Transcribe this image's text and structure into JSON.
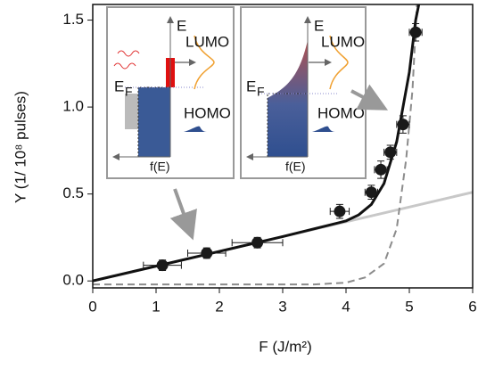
{
  "chart_data": {
    "type": "scatter",
    "x_label": "F (J/m²)",
    "y_label": "Y (1/ 10⁸ pulses)",
    "xlim": [
      0,
      6
    ],
    "xticks": [
      0,
      1,
      2,
      3,
      4,
      5,
      6
    ],
    "ylim": [
      -0.04,
      1.59
    ],
    "yticks": [
      {
        "value": 0,
        "label": "0.0"
      },
      0.5,
      {
        "value": 1,
        "label": "1.0"
      },
      1.5
    ],
    "points": {
      "color": "#1a1a1a",
      "x": [
        1.1,
        1.8,
        2.6,
        3.9,
        4.4,
        4.55,
        4.7,
        4.9,
        5.1
      ],
      "y": [
        0.09,
        0.16,
        0.22,
        0.4,
        0.51,
        0.64,
        0.74,
        0.9,
        1.43
      ],
      "x_err": [
        0.3,
        0.3,
        0.4,
        0.15,
        0.1,
        0.1,
        0.1,
        0.1,
        0.1
      ],
      "y_err": [
        0.03,
        0.03,
        0.03,
        0.04,
        0.04,
        0.05,
        0.04,
        0.05,
        0.05
      ]
    },
    "lines": [
      {
        "style": "solid",
        "color": "#c8c8c8",
        "x": [
          0,
          6
        ],
        "y": [
          0,
          0.51
        ]
      },
      {
        "style": "dashed",
        "color": "#8c8c8c",
        "x": [
          0,
          3,
          3.5,
          4,
          4.3,
          4.6,
          4.8,
          4.95,
          5.05,
          5.12
        ],
        "y": [
          -0.02,
          -0.02,
          -0.02,
          -0.01,
          0.02,
          0.1,
          0.3,
          0.7,
          1.1,
          1.59
        ]
      },
      {
        "style": "solid",
        "color": "#111111",
        "x": [
          0,
          1,
          2,
          3,
          4,
          4.2,
          4.4,
          4.6,
          4.8,
          5.0,
          5.1,
          5.15
        ],
        "y": [
          0,
          0.085,
          0.17,
          0.255,
          0.345,
          0.38,
          0.44,
          0.56,
          0.8,
          1.2,
          1.5,
          1.59
        ]
      }
    ],
    "insets": [
      {
        "energy": "E",
        "lumo": "LUMO",
        "homo": "HOMO",
        "fermi": "E",
        "fermi_sub": "F",
        "occupation": "f(E)"
      },
      {
        "energy": "E",
        "lumo": "LUMO",
        "homo": "HOMO",
        "fermi": "E",
        "fermi_sub": "F",
        "occupation": "f(E)"
      }
    ]
  }
}
